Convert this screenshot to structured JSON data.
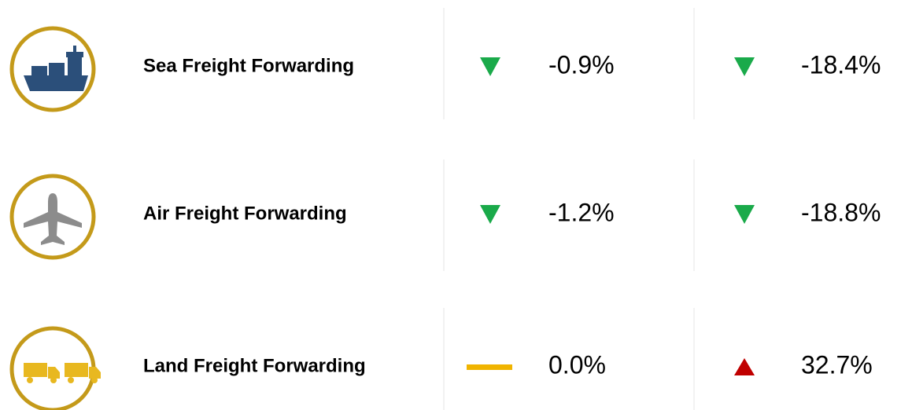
{
  "rows": [
    {
      "label": "Sea Freight Forwarding",
      "changes": [
        {
          "text": "-0.9%",
          "trend": "down"
        },
        {
          "text": "-18.4%",
          "trend": "down"
        }
      ]
    },
    {
      "label": "Air Freight Forwarding",
      "changes": [
        {
          "text": "-1.2%",
          "trend": "down"
        },
        {
          "text": "-18.8%",
          "trend": "down"
        }
      ]
    },
    {
      "label": "Land Freight Forwarding",
      "changes": [
        {
          "text": "0.0%",
          "trend": "flat"
        },
        {
          "text": "32.7%",
          "trend": "up"
        }
      ]
    }
  ]
}
